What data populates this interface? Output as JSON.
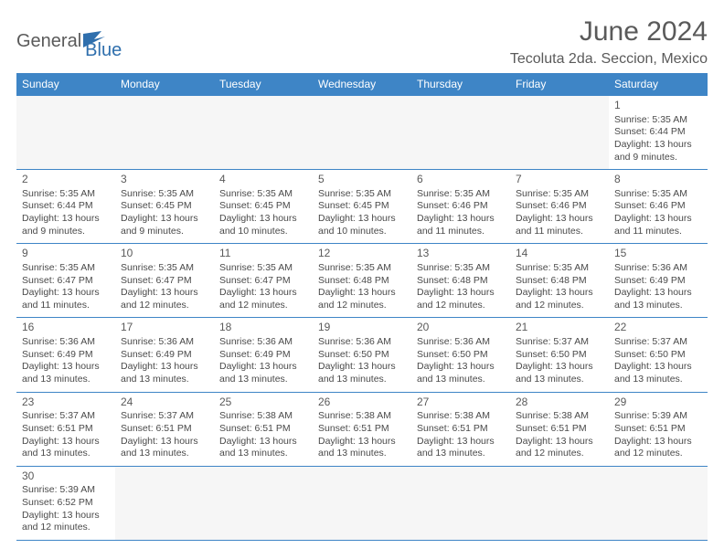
{
  "brand": {
    "general": "General",
    "blue": "Blue"
  },
  "title": "June 2024",
  "location": "Tecoluta 2da. Seccion, Mexico",
  "colors": {
    "header_bg": "#3e85c6",
    "header_fg": "#ffffff",
    "rule": "#3e85c6",
    "text": "#4a4a4a"
  },
  "day_headers": [
    "Sunday",
    "Monday",
    "Tuesday",
    "Wednesday",
    "Thursday",
    "Friday",
    "Saturday"
  ],
  "weeks": [
    [
      null,
      null,
      null,
      null,
      null,
      null,
      {
        "n": "1",
        "sr": "5:35 AM",
        "ss": "6:44 PM",
        "dl": "13 hours and 9 minutes."
      }
    ],
    [
      {
        "n": "2",
        "sr": "5:35 AM",
        "ss": "6:44 PM",
        "dl": "13 hours and 9 minutes."
      },
      {
        "n": "3",
        "sr": "5:35 AM",
        "ss": "6:45 PM",
        "dl": "13 hours and 9 minutes."
      },
      {
        "n": "4",
        "sr": "5:35 AM",
        "ss": "6:45 PM",
        "dl": "13 hours and 10 minutes."
      },
      {
        "n": "5",
        "sr": "5:35 AM",
        "ss": "6:45 PM",
        "dl": "13 hours and 10 minutes."
      },
      {
        "n": "6",
        "sr": "5:35 AM",
        "ss": "6:46 PM",
        "dl": "13 hours and 11 minutes."
      },
      {
        "n": "7",
        "sr": "5:35 AM",
        "ss": "6:46 PM",
        "dl": "13 hours and 11 minutes."
      },
      {
        "n": "8",
        "sr": "5:35 AM",
        "ss": "6:46 PM",
        "dl": "13 hours and 11 minutes."
      }
    ],
    [
      {
        "n": "9",
        "sr": "5:35 AM",
        "ss": "6:47 PM",
        "dl": "13 hours and 11 minutes."
      },
      {
        "n": "10",
        "sr": "5:35 AM",
        "ss": "6:47 PM",
        "dl": "13 hours and 12 minutes."
      },
      {
        "n": "11",
        "sr": "5:35 AM",
        "ss": "6:47 PM",
        "dl": "13 hours and 12 minutes."
      },
      {
        "n": "12",
        "sr": "5:35 AM",
        "ss": "6:48 PM",
        "dl": "13 hours and 12 minutes."
      },
      {
        "n": "13",
        "sr": "5:35 AM",
        "ss": "6:48 PM",
        "dl": "13 hours and 12 minutes."
      },
      {
        "n": "14",
        "sr": "5:35 AM",
        "ss": "6:48 PM",
        "dl": "13 hours and 12 minutes."
      },
      {
        "n": "15",
        "sr": "5:36 AM",
        "ss": "6:49 PM",
        "dl": "13 hours and 13 minutes."
      }
    ],
    [
      {
        "n": "16",
        "sr": "5:36 AM",
        "ss": "6:49 PM",
        "dl": "13 hours and 13 minutes."
      },
      {
        "n": "17",
        "sr": "5:36 AM",
        "ss": "6:49 PM",
        "dl": "13 hours and 13 minutes."
      },
      {
        "n": "18",
        "sr": "5:36 AM",
        "ss": "6:49 PM",
        "dl": "13 hours and 13 minutes."
      },
      {
        "n": "19",
        "sr": "5:36 AM",
        "ss": "6:50 PM",
        "dl": "13 hours and 13 minutes."
      },
      {
        "n": "20",
        "sr": "5:36 AM",
        "ss": "6:50 PM",
        "dl": "13 hours and 13 minutes."
      },
      {
        "n": "21",
        "sr": "5:37 AM",
        "ss": "6:50 PM",
        "dl": "13 hours and 13 minutes."
      },
      {
        "n": "22",
        "sr": "5:37 AM",
        "ss": "6:50 PM",
        "dl": "13 hours and 13 minutes."
      }
    ],
    [
      {
        "n": "23",
        "sr": "5:37 AM",
        "ss": "6:51 PM",
        "dl": "13 hours and 13 minutes."
      },
      {
        "n": "24",
        "sr": "5:37 AM",
        "ss": "6:51 PM",
        "dl": "13 hours and 13 minutes."
      },
      {
        "n": "25",
        "sr": "5:38 AM",
        "ss": "6:51 PM",
        "dl": "13 hours and 13 minutes."
      },
      {
        "n": "26",
        "sr": "5:38 AM",
        "ss": "6:51 PM",
        "dl": "13 hours and 13 minutes."
      },
      {
        "n": "27",
        "sr": "5:38 AM",
        "ss": "6:51 PM",
        "dl": "13 hours and 13 minutes."
      },
      {
        "n": "28",
        "sr": "5:38 AM",
        "ss": "6:51 PM",
        "dl": "13 hours and 12 minutes."
      },
      {
        "n": "29",
        "sr": "5:39 AM",
        "ss": "6:51 PM",
        "dl": "13 hours and 12 minutes."
      }
    ],
    [
      {
        "n": "30",
        "sr": "5:39 AM",
        "ss": "6:52 PM",
        "dl": "13 hours and 12 minutes."
      },
      null,
      null,
      null,
      null,
      null,
      null
    ]
  ],
  "labels": {
    "sunrise": "Sunrise: ",
    "sunset": "Sunset: ",
    "daylight": "Daylight: "
  }
}
